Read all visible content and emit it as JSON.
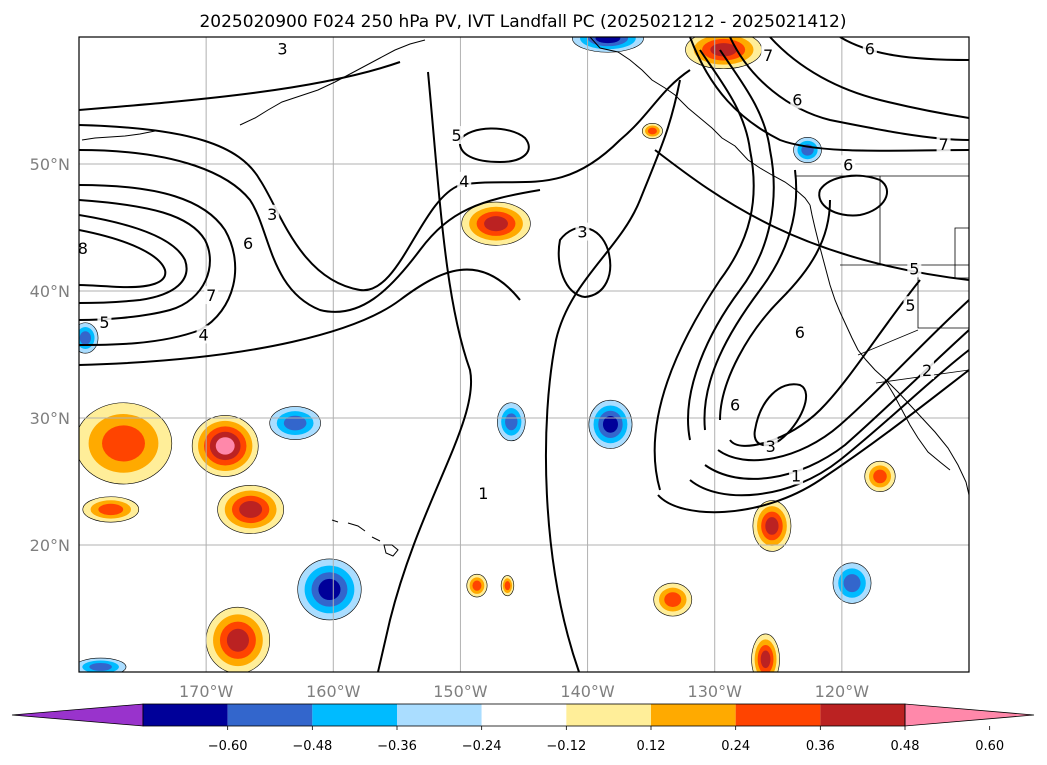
{
  "title": "2025020900 F024 250 hPa PV, IVT Landfall PC (2025021212 - 2025021412)",
  "map": {
    "lon_range": [
      -180,
      -110
    ],
    "lat_range": [
      10,
      60
    ],
    "lon_ticks": [
      {
        "value": -170,
        "label": "170°W"
      },
      {
        "value": -160,
        "label": "160°W"
      },
      {
        "value": -150,
        "label": "150°W"
      },
      {
        "value": -140,
        "label": "140°W"
      },
      {
        "value": -130,
        "label": "130°W"
      },
      {
        "value": -120,
        "label": "120°W"
      }
    ],
    "lat_ticks": [
      {
        "value": 20,
        "label": "20°N"
      },
      {
        "value": 30,
        "label": "30°N"
      },
      {
        "value": 40,
        "label": "40°N"
      },
      {
        "value": 50,
        "label": "50°N"
      }
    ],
    "grid": true
  },
  "contour_labels": [
    {
      "text": "5",
      "lon": -150.3,
      "lat": 52.2
    },
    {
      "text": "4",
      "lon": -149.7,
      "lat": 48.6
    },
    {
      "text": "3",
      "lon": -140.4,
      "lat": 44.6
    },
    {
      "text": "3",
      "lon": -164.8,
      "lat": 46.0
    },
    {
      "text": "6",
      "lon": -166.7,
      "lat": 43.7
    },
    {
      "text": "7",
      "lon": -169.6,
      "lat": 39.6
    },
    {
      "text": "5",
      "lon": -178.0,
      "lat": 37.5
    },
    {
      "text": "4",
      "lon": -170.2,
      "lat": 36.5
    },
    {
      "text": "8",
      "lon": -179.7,
      "lat": 43.3
    },
    {
      "text": "1",
      "lon": -148.2,
      "lat": 24.0
    },
    {
      "text": "6",
      "lon": -128.4,
      "lat": 31.0
    },
    {
      "text": "3",
      "lon": -125.6,
      "lat": 27.7
    },
    {
      "text": "1",
      "lon": -123.6,
      "lat": 25.4
    },
    {
      "text": "6",
      "lon": -119.5,
      "lat": 49.9
    },
    {
      "text": "5",
      "lon": -114.3,
      "lat": 41.7
    },
    {
      "text": "5",
      "lon": -114.6,
      "lat": 38.8
    },
    {
      "text": "6",
      "lon": -123.5,
      "lat": 55.0
    },
    {
      "text": "7",
      "lon": -112.0,
      "lat": 51.5
    },
    {
      "text": "6",
      "lon": -117.8,
      "lat": 59.0
    },
    {
      "text": "7",
      "lon": -125.8,
      "lat": 58.5
    },
    {
      "text": "3",
      "lon": -164.0,
      "lat": 59.0
    },
    {
      "text": "2",
      "lon": -113.3,
      "lat": 33.7
    },
    {
      "text": "6",
      "lon": -123.3,
      "lat": 36.7
    }
  ],
  "shading": {
    "colors": [
      "#9933cc",
      "#000099",
      "#3366cc",
      "#00bbff",
      "#aaddff",
      "#ffffff",
      "#ffee99",
      "#ffaa00",
      "#ff4400",
      "#bb2222",
      "#ff88aa"
    ],
    "boundaries": [
      -0.6,
      -0.48,
      -0.36,
      -0.24,
      -0.12,
      0.12,
      0.24,
      0.36,
      0.48,
      0.6
    ],
    "colorbar_labels": [
      "−0.60",
      "−0.48",
      "−0.36",
      "−0.24",
      "−0.12",
      "0.12",
      "0.24",
      "0.36",
      "0.48",
      "0.60"
    ],
    "blobs": [
      {
        "lon": -176.5,
        "lat": 28.0,
        "rx": 3.8,
        "ry": 3.2,
        "value": 0.4
      },
      {
        "lon": -177.5,
        "lat": 22.8,
        "rx": 2.2,
        "ry": 1.0,
        "value": 0.4
      },
      {
        "lon": -168.5,
        "lat": 27.8,
        "rx": 2.6,
        "ry": 2.4,
        "value": 0.63
      },
      {
        "lon": -166.5,
        "lat": 22.8,
        "rx": 2.6,
        "ry": 1.9,
        "value": 0.52
      },
      {
        "lon": -163.0,
        "lat": 29.6,
        "rx": 2.0,
        "ry": 1.3,
        "value": -0.42
      },
      {
        "lon": -160.3,
        "lat": 16.5,
        "rx": 2.5,
        "ry": 2.4,
        "value": -0.52
      },
      {
        "lon": -167.5,
        "lat": 12.5,
        "rx": 2.5,
        "ry": 2.6,
        "value": 0.52
      },
      {
        "lon": -147.2,
        "lat": 45.3,
        "rx": 2.7,
        "ry": 1.7,
        "value": 0.5
      },
      {
        "lon": -146.0,
        "lat": 29.7,
        "rx": 1.1,
        "ry": 1.5,
        "value": -0.4
      },
      {
        "lon": -138.2,
        "lat": 29.5,
        "rx": 1.7,
        "ry": 1.9,
        "value": -0.58
      },
      {
        "lon": -133.3,
        "lat": 15.7,
        "rx": 1.5,
        "ry": 1.3,
        "value": 0.4
      },
      {
        "lon": -148.7,
        "lat": 16.8,
        "rx": 0.8,
        "ry": 0.9,
        "value": 0.38
      },
      {
        "lon": -146.3,
        "lat": 16.8,
        "rx": 0.5,
        "ry": 0.8,
        "value": 0.38
      },
      {
        "lon": -125.5,
        "lat": 21.5,
        "rx": 1.5,
        "ry": 2.0,
        "value": 0.52
      },
      {
        "lon": -126.0,
        "lat": 11.0,
        "rx": 1.1,
        "ry": 2.0,
        "value": 0.55
      },
      {
        "lon": -119.2,
        "lat": 17.0,
        "rx": 1.5,
        "ry": 1.6,
        "value": -0.4
      },
      {
        "lon": -117.0,
        "lat": 25.4,
        "rx": 1.2,
        "ry": 1.2,
        "value": 0.4
      },
      {
        "lon": -122.7,
        "lat": 51.1,
        "rx": 1.1,
        "ry": 1.0,
        "value": -0.36
      },
      {
        "lon": -134.9,
        "lat": 52.6,
        "rx": 0.8,
        "ry": 0.6,
        "value": 0.38
      },
      {
        "lon": -129.3,
        "lat": 59.0,
        "rx": 3.0,
        "ry": 1.5,
        "value": 0.52
      },
      {
        "lon": -138.4,
        "lat": 59.9,
        "rx": 2.8,
        "ry": 1.1,
        "value": -0.58
      },
      {
        "lon": -179.5,
        "lat": 36.3,
        "rx": 1.0,
        "ry": 1.2,
        "value": -0.4
      },
      {
        "lon": -178.3,
        "lat": 10.4,
        "rx": 2.0,
        "ry": 0.7,
        "value": -0.4
      }
    ]
  }
}
